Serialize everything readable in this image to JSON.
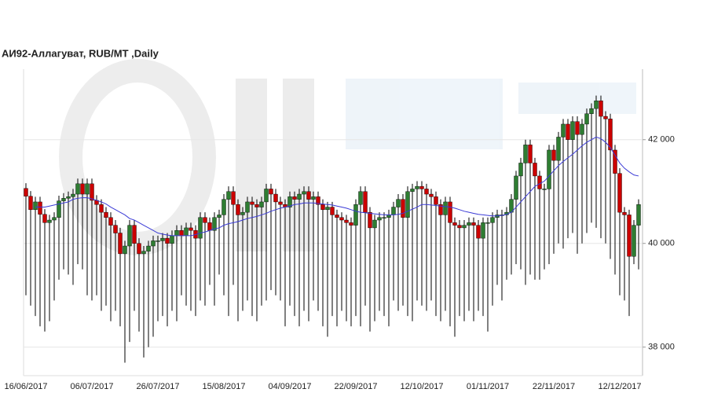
{
  "chart_data": {
    "type": "candlestick",
    "title": "АИ92-Аллагуват,  RUB/MT ,Daily",
    "categories": [
      "16/06/2017",
      null,
      null,
      null,
      null,
      null,
      null,
      null,
      null,
      null,
      null,
      null,
      null,
      null,
      "06/07/2017",
      null,
      null,
      null,
      null,
      null,
      null,
      null,
      null,
      null,
      null,
      null,
      null,
      null,
      "26/07/2017",
      null,
      null,
      null,
      null,
      null,
      null,
      null,
      null,
      null,
      null,
      null,
      null,
      null,
      "15/08/2017",
      null,
      null,
      null,
      null,
      null,
      null,
      null,
      null,
      null,
      null,
      null,
      null,
      null,
      "04/09/2017",
      null,
      null,
      null,
      null,
      null,
      null,
      null,
      null,
      null,
      null,
      null,
      null,
      null,
      "22/09/2017",
      null,
      null,
      null,
      null,
      null,
      null,
      null,
      null,
      null,
      null,
      null,
      null,
      null,
      "12/10/2017",
      null,
      null,
      null,
      null,
      null,
      null,
      null,
      null,
      null,
      null,
      null,
      null,
      null,
      "01/11/2017",
      null,
      null,
      null,
      null,
      null,
      null,
      null,
      null,
      null,
      null,
      null,
      null,
      null,
      "22/11/2017",
      null,
      null,
      null,
      null,
      null,
      null,
      null,
      null,
      null,
      null,
      null,
      null,
      null,
      "12/12/2017",
      null,
      null,
      null,
      null
    ],
    "open": [
      41060,
      40910,
      40650,
      40800,
      40560,
      40400,
      40450,
      40500,
      40820,
      40870,
      40900,
      40950,
      41150,
      40950,
      41150,
      40830,
      40750,
      40600,
      40500,
      40350,
      40200,
      39800,
      39950,
      40350,
      40000,
      39800,
      39850,
      39950,
      40050,
      40050,
      40100,
      40000,
      40150,
      40250,
      40150,
      40300,
      40250,
      40100,
      40500,
      40400,
      40250,
      40500,
      40550,
      40850,
      41000,
      40750,
      40550,
      40600,
      40800,
      40750,
      40700,
      40800,
      41050,
      40950,
      40800,
      40750,
      40700,
      40900,
      40850,
      40950,
      41000,
      40850,
      40900,
      40750,
      40650,
      40700,
      40550,
      40500,
      40450,
      40400,
      40350,
      40750,
      41000,
      40600,
      40300,
      40450,
      40500,
      40500,
      40550,
      40700,
      40850,
      40500,
      41000,
      41050,
      41100,
      41050,
      40950,
      40900,
      40750,
      40550,
      40800,
      40400,
      40350,
      40300,
      40350,
      40400,
      40350,
      40100,
      40400,
      40400,
      40500,
      40550,
      40550,
      40600,
      40850,
      41300,
      41550,
      41900,
      41550,
      41300,
      41050,
      41050,
      41800,
      41600,
      42050,
      42300,
      42000,
      42350,
      42100,
      42300,
      42500,
      42600,
      42750,
      42450,
      42400,
      41800,
      41350,
      40600,
      40550,
      39750,
      40350
    ],
    "high": [
      41160,
      41010,
      40900,
      40900,
      40660,
      40550,
      40600,
      40920,
      40970,
      41000,
      41050,
      41250,
      41250,
      41250,
      41250,
      40930,
      40850,
      40700,
      40600,
      40450,
      40300,
      40050,
      40450,
      40450,
      40100,
      39950,
      40050,
      40150,
      40150,
      40200,
      40200,
      40250,
      40350,
      40350,
      40400,
      40400,
      40350,
      40600,
      40600,
      40500,
      40600,
      40650,
      40950,
      41100,
      41100,
      40850,
      40700,
      40900,
      40900,
      40850,
      40900,
      41150,
      41150,
      41050,
      40900,
      40850,
      41000,
      41000,
      41050,
      41100,
      41100,
      41000,
      41000,
      40850,
      40800,
      40800,
      40650,
      40600,
      40550,
      40500,
      40850,
      41100,
      41100,
      40700,
      40550,
      40600,
      40600,
      40650,
      40800,
      40950,
      40950,
      41100,
      41150,
      41200,
      41200,
      41150,
      41050,
      41000,
      40850,
      40900,
      40900,
      40500,
      40450,
      40450,
      40500,
      40500,
      40450,
      40500,
      40500,
      40600,
      40650,
      40650,
      40700,
      40950,
      41400,
      41650,
      42000,
      42000,
      41650,
      41400,
      41150,
      41900,
      41900,
      42150,
      42400,
      42400,
      42450,
      42450,
      42400,
      42600,
      42700,
      42850,
      42850,
      42550,
      42500,
      41900,
      41450,
      40700,
      40650,
      40450,
      40850
    ],
    "low": [
      39000,
      38800,
      38600,
      38400,
      38300,
      38500,
      38900,
      39300,
      39500,
      39400,
      39200,
      39600,
      39500,
      39000,
      38900,
      39000,
      38700,
      38800,
      38500,
      38700,
      38400,
      37700,
      38100,
      38700,
      38300,
      37800,
      38000,
      38200,
      38500,
      38600,
      38400,
      38700,
      38500,
      39000,
      38800,
      38700,
      38600,
      38900,
      38800,
      39200,
      38800,
      39400,
      39000,
      38600,
      39200,
      38500,
      38700,
      38900,
      38600,
      38500,
      38800,
      38900,
      39100,
      39000,
      38900,
      38400,
      38800,
      38600,
      38400,
      38700,
      38500,
      38900,
      38700,
      38400,
      38200,
      38600,
      38400,
      38700,
      38500,
      38400,
      38600,
      38400,
      38800,
      38300,
      38500,
      38700,
      38600,
      38400,
      38900,
      38700,
      38800,
      38600,
      38500,
      38900,
      38800,
      38700,
      38900,
      38600,
      38500,
      38700,
      38400,
      38200,
      38600,
      38500,
      38700,
      38500,
      38700,
      38600,
      38300,
      38800,
      39200,
      38900,
      39300,
      39400,
      39600,
      39500,
      39200,
      39400,
      39300,
      39300,
      39500,
      39600,
      39800,
      40000,
      39900,
      40100,
      40200,
      39800,
      40000,
      40200,
      40400,
      40300,
      40100,
      40000,
      39700,
      39400,
      39000,
      38900,
      38600,
      39600,
      39500
    ],
    "close": [
      40910,
      40650,
      40800,
      40560,
      40400,
      40450,
      40500,
      40820,
      40870,
      40900,
      40950,
      41150,
      40950,
      41150,
      40830,
      40750,
      40600,
      40500,
      40350,
      40200,
      39800,
      39950,
      40350,
      40000,
      39800,
      39850,
      39950,
      40050,
      40050,
      40100,
      40000,
      40150,
      40250,
      40150,
      40300,
      40250,
      40100,
      40500,
      40400,
      40250,
      40500,
      40550,
      40850,
      41000,
      40750,
      40550,
      40600,
      40800,
      40750,
      40700,
      40800,
      41050,
      40950,
      40800,
      40750,
      40700,
      40900,
      40850,
      40950,
      41000,
      40850,
      40900,
      40750,
      40650,
      40700,
      40550,
      40500,
      40450,
      40400,
      40350,
      40750,
      41000,
      40600,
      40300,
      40450,
      40500,
      40500,
      40550,
      40700,
      40850,
      40500,
      41000,
      41050,
      41100,
      41050,
      40950,
      40900,
      40750,
      40550,
      40800,
      40400,
      40350,
      40300,
      40350,
      40400,
      40350,
      40100,
      40400,
      40400,
      40500,
      40550,
      40550,
      40600,
      40850,
      41300,
      41550,
      41900,
      41550,
      41300,
      41050,
      41050,
      41800,
      41600,
      42050,
      42300,
      42000,
      42350,
      42100,
      42300,
      42500,
      42600,
      42750,
      42450,
      42400,
      41800,
      41350,
      40600,
      40550,
      39750,
      40350,
      40750
    ],
    "up_color": "#2e7d32",
    "down_color": "#cc0000",
    "wick_color": "#000000",
    "ma": {
      "color": "#3b3bd6",
      "values": [
        null,
        null,
        40700,
        40700,
        40700,
        40720,
        40740,
        40760,
        40780,
        40800,
        40850,
        40870,
        40880,
        40880,
        40860,
        40830,
        40800,
        40760,
        40700,
        40650,
        40600,
        40550,
        40480,
        40450,
        40400,
        40350,
        40300,
        40250,
        40200,
        40180,
        40160,
        40150,
        40150,
        40150,
        40150,
        40150,
        40170,
        40200,
        40220,
        40250,
        40280,
        40300,
        40350,
        40380,
        40400,
        40420,
        40450,
        40480,
        40500,
        40520,
        40550,
        40580,
        40620,
        40650,
        40680,
        40700,
        40720,
        40750,
        40760,
        40780,
        40780,
        40780,
        40770,
        40760,
        40750,
        40740,
        40720,
        40700,
        40680,
        40650,
        40620,
        40600,
        40590,
        40580,
        40570,
        40560,
        40550,
        40550,
        40550,
        40560,
        40580,
        40620,
        40660,
        40700,
        40750,
        40750,
        40740,
        40730,
        40720,
        40710,
        40700,
        40680,
        40650,
        40620,
        40600,
        40580,
        40560,
        40550,
        40540,
        40530,
        40530,
        40540,
        40560,
        40600,
        40700,
        40800,
        40900,
        41000,
        41100,
        41150,
        41200,
        41300,
        41400,
        41500,
        41580,
        41650,
        41720,
        41800,
        41880,
        41950,
        42000,
        42050,
        42020,
        41950,
        41850,
        41700,
        41550,
        41450,
        41380,
        41320,
        41300
      ]
    },
    "ylim": [
      37450,
      43360
    ],
    "yticks": [
      {
        "value": 38000,
        "label": "38 000"
      },
      {
        "value": 40000,
        "label": "40 000"
      },
      {
        "value": 42000,
        "label": "42 000"
      }
    ],
    "grid": true
  }
}
